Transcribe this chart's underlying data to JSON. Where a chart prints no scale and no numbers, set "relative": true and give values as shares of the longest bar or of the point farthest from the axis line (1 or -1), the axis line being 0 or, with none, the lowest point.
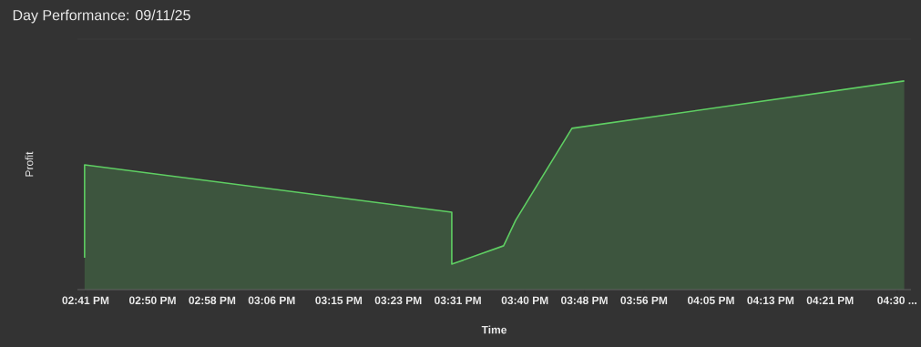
{
  "chart_data": {
    "type": "area",
    "title": "Day Performance: 09/11/25",
    "xlabel": "Time",
    "ylabel": "Profit",
    "relative": true,
    "x": [
      14.681,
      14.681,
      15.503,
      15.503,
      15.619,
      15.646,
      15.772,
      16.516
    ],
    "series": [
      {
        "color": "#5fcf63",
        "values": [
          0.153,
          0.598,
          0.371,
          0.122,
          0.21,
          0.332,
          0.773,
          1
        ]
      }
    ],
    "xlim": [
      14.665,
      16.531
    ],
    "xticks": [
      {
        "value": 14.6833,
        "label": "02:41 PM"
      },
      {
        "value": 14.8333,
        "label": "02:50 PM"
      },
      {
        "value": 14.9667,
        "label": "02:58 PM"
      },
      {
        "value": 15.1,
        "label": "03:06 PM"
      },
      {
        "value": 15.25,
        "label": "03:15 PM"
      },
      {
        "value": 15.3833,
        "label": "03:23 PM"
      },
      {
        "value": 15.5167,
        "label": "03:31 PM"
      },
      {
        "value": 15.6667,
        "label": "03:40 PM"
      },
      {
        "value": 15.8,
        "label": "03:48 PM"
      },
      {
        "value": 15.9333,
        "label": "03:56 PM"
      },
      {
        "value": 16.0833,
        "label": "04:05 PM"
      },
      {
        "value": 16.2167,
        "label": "04:13 PM"
      },
      {
        "value": 16.35,
        "label": "04:21 PM"
      },
      {
        "value": 16.5,
        "label": "04:30 ..."
      }
    ]
  }
}
